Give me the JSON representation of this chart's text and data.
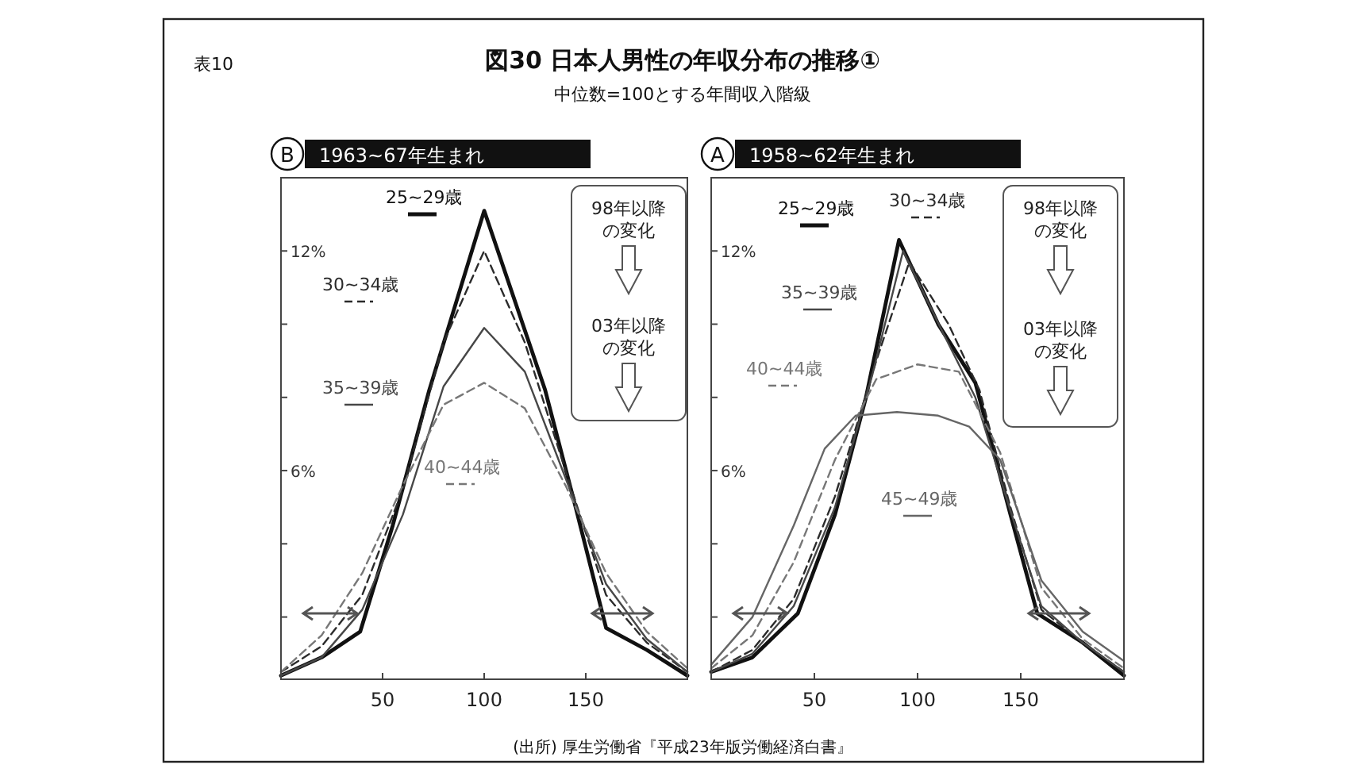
{
  "chart_data": [
    {
      "type": "other",
      "title": "図30 日本人男性の年収分布の推移①",
      "subtitle": "中位数=100とする年間収入階級",
      "annotations": [
        "表10",
        "(出所) 厚生労働省『平成23年版労働経済白書』"
      ]
    },
    {
      "type": "line",
      "title": "1963~67年生まれ",
      "xlim": [
        0,
        200
      ],
      "ylim": [
        0.3,
        14
      ],
      "xticks": [
        50,
        100,
        150
      ],
      "yticks": [
        {
          "value": 2,
          "label": null
        },
        {
          "value": 4,
          "label": null
        },
        {
          "value": 6,
          "label": "6%"
        },
        {
          "value": 8,
          "label": null
        },
        {
          "value": 10,
          "label": null
        },
        {
          "value": 12,
          "label": "12%"
        }
      ],
      "annotations": [
        "B",
        "98年以降の変化",
        "03年以降の変化"
      ],
      "series": [
        {
          "name": "25~29歳",
          "color": "#111111",
          "line_style": "solid",
          "x": [
            0,
            20,
            39,
            55,
            73,
            100,
            130,
            145,
            160,
            180,
            200
          ],
          "values": [
            0.4,
            0.9,
            1.6,
            4.5,
            8.2,
            13.1,
            8.2,
            5.0,
            1.7,
            1.1,
            0.4
          ]
        },
        {
          "name": "30~34歳",
          "color": "#2b2b2b",
          "line_style": "dashed",
          "x": [
            0,
            20,
            40,
            60,
            80,
            100,
            120,
            140,
            160,
            180,
            200
          ],
          "values": [
            0.5,
            1.2,
            2.6,
            5.5,
            9.5,
            12.0,
            9.5,
            6.0,
            2.6,
            1.3,
            0.5
          ]
        },
        {
          "name": "35~39歳",
          "color": "#474747",
          "line_style": "solid",
          "x": [
            0,
            20,
            40,
            60,
            80,
            100,
            120,
            140,
            160,
            180,
            200
          ],
          "values": [
            0.4,
            0.9,
            2.2,
            4.8,
            8.3,
            9.9,
            8.7,
            5.8,
            2.9,
            1.4,
            0.5
          ]
        },
        {
          "name": "40~44歳",
          "color": "#777777",
          "line_style": "dashed",
          "x": [
            0,
            20,
            40,
            60,
            80,
            100,
            120,
            140,
            160,
            180,
            200
          ],
          "values": [
            0.5,
            1.5,
            3.2,
            5.6,
            7.8,
            8.4,
            7.7,
            5.6,
            3.2,
            1.6,
            0.6
          ]
        }
      ]
    },
    {
      "type": "line",
      "title": "1958~62年生まれ",
      "xlim": [
        0,
        200
      ],
      "ylim": [
        0.3,
        14
      ],
      "xticks": [
        50,
        100,
        150
      ],
      "yticks": [
        {
          "value": 2,
          "label": null
        },
        {
          "value": 4,
          "label": null
        },
        {
          "value": 6,
          "label": "6%"
        },
        {
          "value": 8,
          "label": null
        },
        {
          "value": 10,
          "label": null
        },
        {
          "value": 12,
          "label": "12%"
        }
      ],
      "annotations": [
        "A",
        "98年以降の変化",
        "03年以降の変化"
      ],
      "series": [
        {
          "name": "25~29歳",
          "color": "#111111",
          "line_style": "solid",
          "x": [
            0,
            20,
            42,
            60,
            75,
            91,
            110,
            128,
            145,
            158,
            180,
            200
          ],
          "values": [
            0.5,
            0.9,
            2.1,
            4.8,
            8.0,
            12.3,
            10.0,
            8.4,
            4.8,
            2.1,
            1.3,
            0.4
          ]
        },
        {
          "name": "30~34歳",
          "color": "#2b2b2b",
          "line_style": "dashed",
          "x": [
            0,
            20,
            40,
            60,
            80,
            96,
            115,
            130,
            145,
            160,
            180,
            200
          ],
          "values": [
            0.5,
            1.1,
            2.5,
            5.3,
            9.0,
            11.7,
            10.0,
            8.2,
            5.0,
            2.2,
            1.3,
            0.5
          ]
        },
        {
          "name": "35~39歳",
          "color": "#474747",
          "line_style": "solid",
          "x": [
            0,
            20,
            40,
            60,
            78,
            93,
            112,
            128,
            145,
            160,
            180,
            200
          ],
          "values": [
            0.5,
            1.0,
            2.3,
            5.0,
            8.6,
            12.0,
            9.8,
            8.0,
            4.9,
            2.3,
            1.3,
            0.5
          ]
        },
        {
          "name": "40~44歳",
          "color": "#777777",
          "line_style": "dashed",
          "x": [
            0,
            20,
            40,
            60,
            80,
            100,
            120,
            140,
            160,
            180,
            200
          ],
          "values": [
            0.6,
            1.5,
            3.5,
            6.3,
            8.5,
            8.9,
            8.7,
            6.5,
            2.8,
            1.4,
            0.6
          ]
        },
        {
          "name": "45~49歳",
          "color": "#666666",
          "line_style": "solid",
          "x": [
            0,
            20,
            40,
            55,
            70,
            90,
            110,
            125,
            140,
            160,
            180,
            200
          ],
          "values": [
            0.7,
            2.0,
            4.5,
            6.6,
            7.5,
            7.6,
            7.5,
            7.2,
            6.3,
            3.0,
            1.6,
            0.8
          ]
        }
      ]
    }
  ]
}
